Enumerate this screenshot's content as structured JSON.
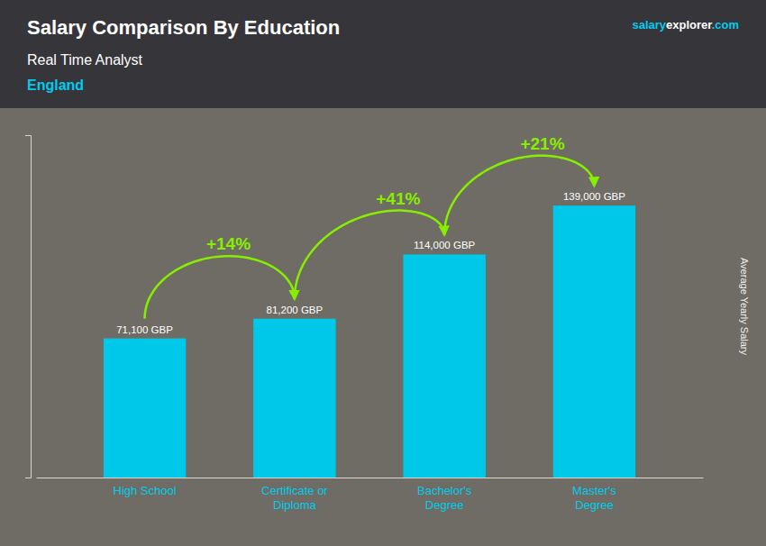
{
  "chart_data": {
    "type": "bar",
    "title": "Salary Comparison By Education",
    "subtitle": [
      "Real Time Analyst",
      "England"
    ],
    "ylabel": "Average Yearly Salary",
    "categories": [
      "High School",
      "Certificate or\nDiploma",
      "Bachelor's\nDegree",
      "Master's\nDegree"
    ],
    "values": [
      71100,
      81200,
      114000,
      139000
    ],
    "value_labels": [
      "71,100 GBP",
      "81,200 GBP",
      "114,000 GBP",
      "139,000 GBP"
    ],
    "data_labels": true,
    "color": "#00c8e8",
    "ylim": [
      0,
      175000
    ],
    "tick_labels": "x",
    "grid": false,
    "annotations": [
      {
        "type": "arrow",
        "text": "+14%",
        "color": "#88ee00"
      },
      {
        "type": "arrow",
        "text": "+41%",
        "color": "#88ee00"
      },
      {
        "type": "arrow",
        "text": "+21%",
        "color": "#88ee00"
      },
      {
        "type": "text",
        "text": "salary",
        "color": "#00ccee"
      },
      {
        "type": "text",
        "text": "explorer",
        "color": "#ffffff"
      },
      {
        "type": "text",
        "text": ".com",
        "color": "#00ccee"
      }
    ]
  }
}
